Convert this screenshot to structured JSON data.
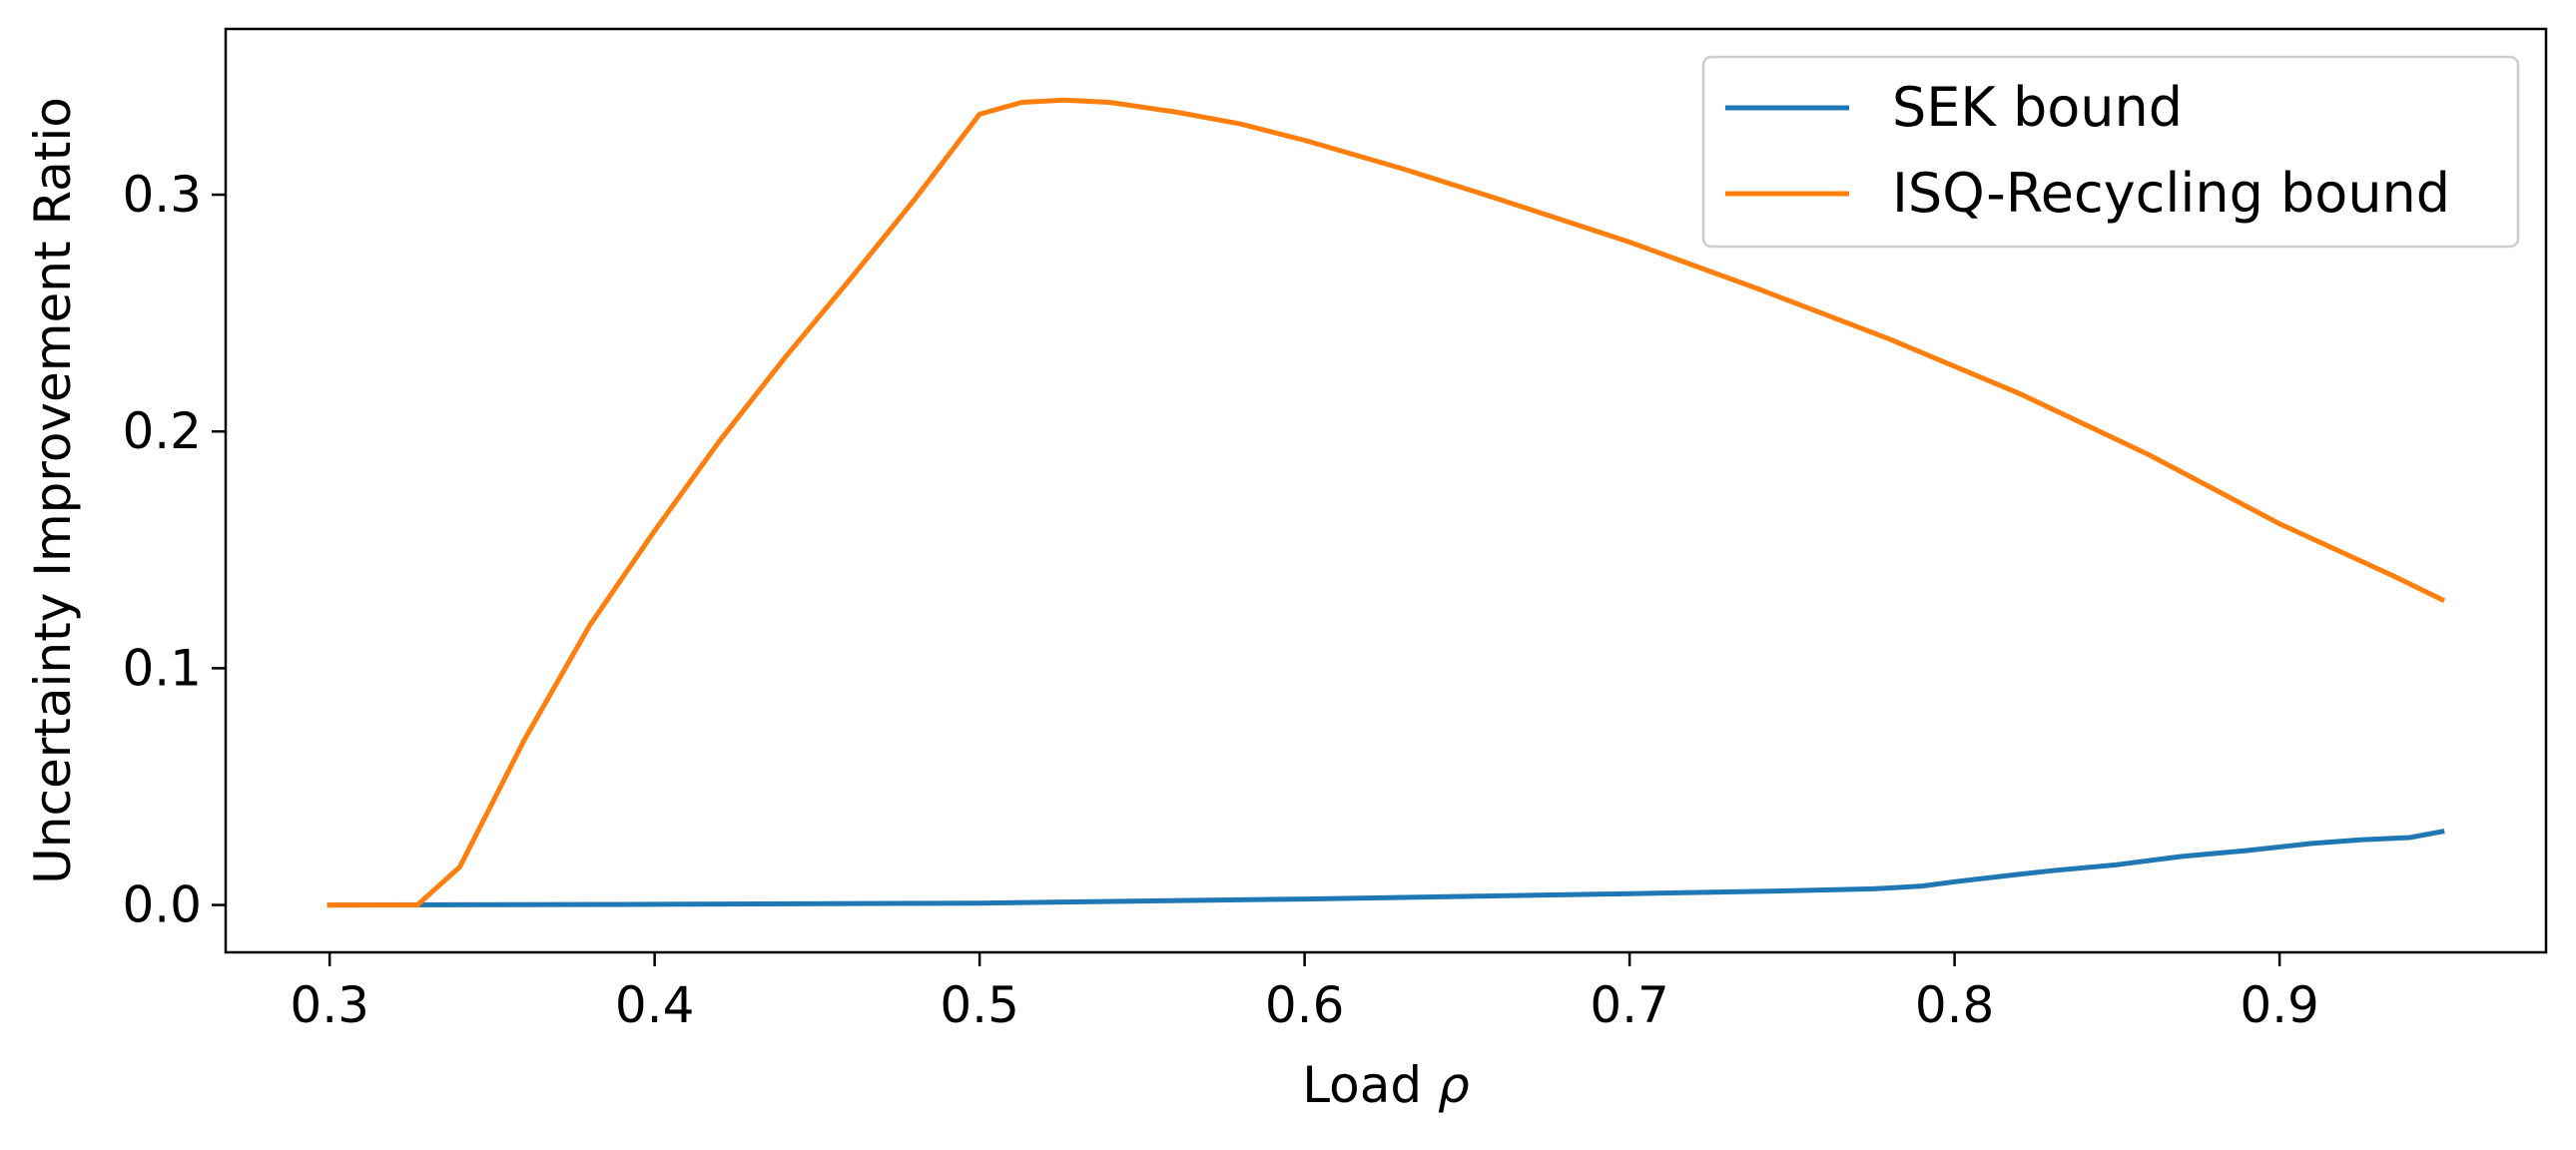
{
  "chart_data": {
    "type": "line",
    "title": "",
    "xlabel": "Load",
    "xlabel_symbol": "ρ",
    "ylabel": "Uncertainty Improvement Ratio",
    "xlim": [
      0.268,
      0.982
    ],
    "ylim": [
      -0.02,
      0.37
    ],
    "x_ticks": [
      0.3,
      0.4,
      0.5,
      0.6,
      0.7,
      0.8,
      0.9
    ],
    "y_ticks": [
      0.0,
      0.1,
      0.2,
      0.3
    ],
    "grid": false,
    "legend_position": "top-right",
    "series": [
      {
        "name": "SEK bound",
        "color": "#1f77b4",
        "x": [
          0.3,
          0.4,
          0.5,
          0.6,
          0.7,
          0.75,
          0.775,
          0.79,
          0.8,
          0.815,
          0.83,
          0.85,
          0.87,
          0.89,
          0.91,
          0.925,
          0.94,
          0.95
        ],
        "y": [
          0.0,
          0.0003,
          0.0008,
          0.0025,
          0.0048,
          0.006,
          0.0068,
          0.008,
          0.0098,
          0.0122,
          0.0145,
          0.017,
          0.0205,
          0.023,
          0.026,
          0.0275,
          0.0285,
          0.031
        ]
      },
      {
        "name": "ISQ-Recycling bound",
        "color": "#ff7f0e",
        "x": [
          0.3,
          0.31,
          0.327,
          0.34,
          0.36,
          0.38,
          0.4,
          0.42,
          0.44,
          0.46,
          0.48,
          0.5,
          0.513,
          0.526,
          0.54,
          0.56,
          0.58,
          0.6,
          0.63,
          0.66,
          0.7,
          0.74,
          0.78,
          0.82,
          0.86,
          0.9,
          0.935,
          0.95
        ],
        "y": [
          0.0,
          0.0,
          0.0,
          0.016,
          0.07,
          0.118,
          0.158,
          0.196,
          0.231,
          0.264,
          0.298,
          0.334,
          0.339,
          0.34,
          0.339,
          0.335,
          0.33,
          0.323,
          0.311,
          0.298,
          0.28,
          0.26,
          0.239,
          0.216,
          0.19,
          0.161,
          0.139,
          0.129
        ]
      }
    ]
  }
}
